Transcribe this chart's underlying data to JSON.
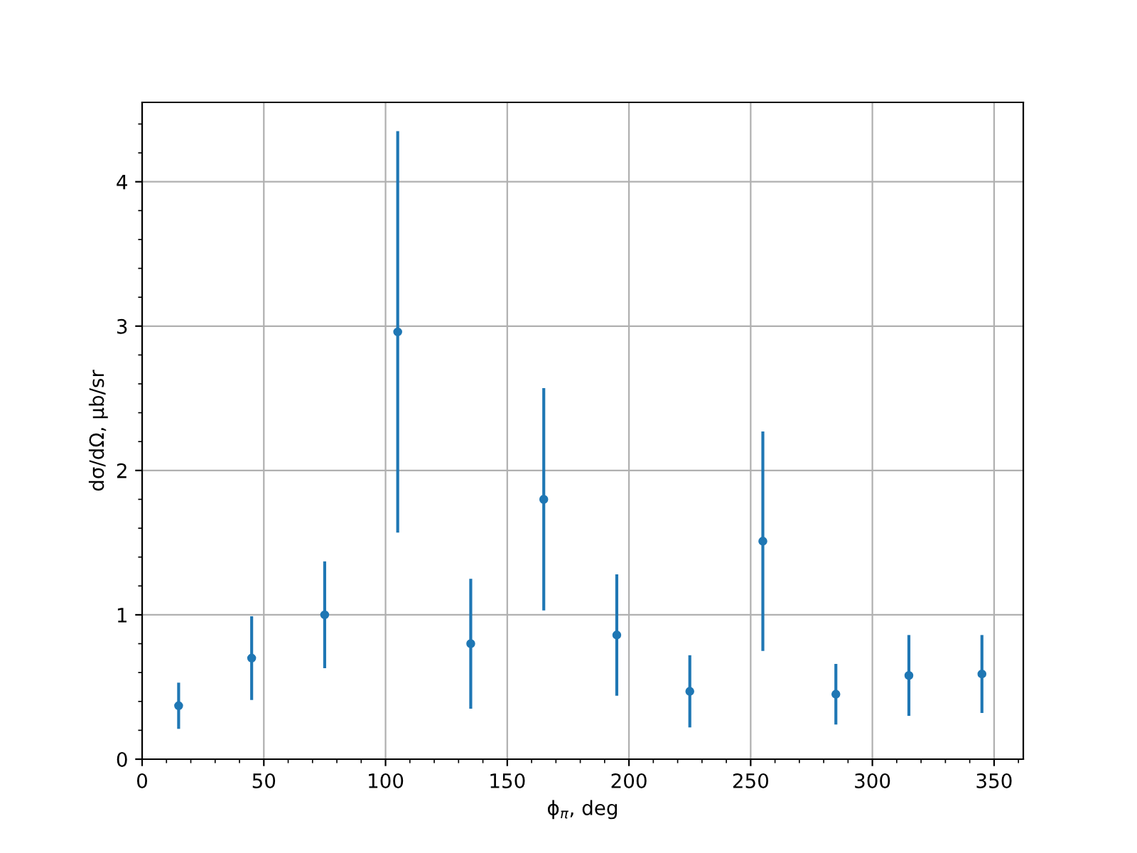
{
  "chart_data": {
    "type": "scatter",
    "xlabel": "ϕ$_{π}$, deg",
    "ylabel": "dσ/dΩ, μb/sr",
    "x": [
      15,
      45,
      75,
      105,
      135,
      165,
      195,
      225,
      255,
      285,
      315,
      345
    ],
    "series": [
      {
        "color": "#1f77b4",
        "values": [
          0.37,
          0.7,
          1.0,
          2.96,
          0.8,
          1.8,
          0.86,
          0.47,
          1.51,
          0.45,
          0.58,
          0.59
        ],
        "errors": [
          0.16,
          0.29,
          0.37,
          1.39,
          0.45,
          0.77,
          0.42,
          0.25,
          0.76,
          0.21,
          0.28,
          0.27
        ]
      }
    ],
    "xlim": [
      0,
      362
    ],
    "xticks": [
      0,
      50,
      100,
      150,
      200,
      250,
      300,
      350
    ],
    "ylim": [
      0,
      4.55
    ],
    "yticks": [
      0,
      1,
      2,
      3,
      4
    ],
    "grid": true,
    "marker": "circle"
  }
}
